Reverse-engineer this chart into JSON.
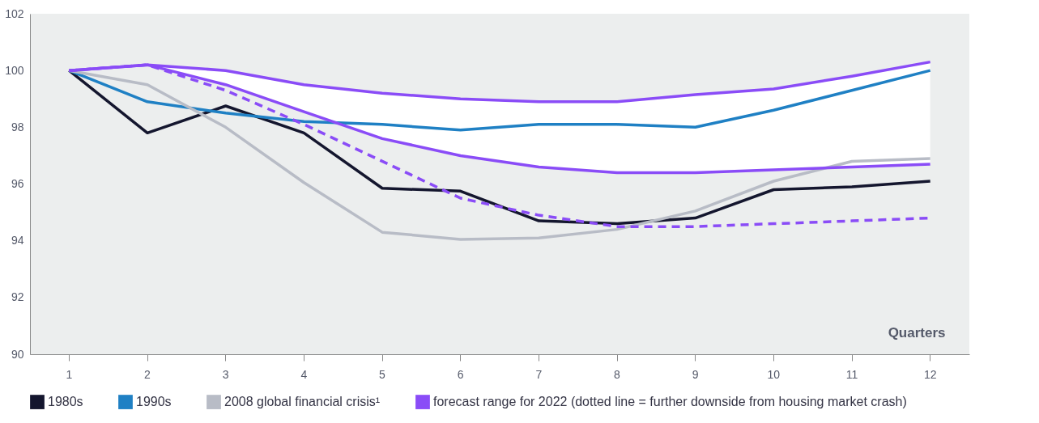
{
  "chart_data": {
    "type": "line",
    "xlabel": "Quarters",
    "categories": [
      "1",
      "2",
      "3",
      "4",
      "5",
      "6",
      "7",
      "8",
      "9",
      "10",
      "11",
      "12"
    ],
    "series": [
      {
        "name": "1980s",
        "color": "#14162e",
        "values": [
          100,
          97.8,
          98.75,
          97.8,
          95.85,
          95.75,
          94.7,
          94.6,
          94.8,
          95.8,
          95.9,
          96.1
        ]
      },
      {
        "name": "1990s",
        "color": "#1f80c4",
        "values": [
          100,
          98.9,
          98.5,
          98.2,
          98.1,
          97.9,
          98.1,
          98.1,
          98.0,
          98.6,
          99.3,
          100
        ]
      },
      {
        "name": "2008 global financial crisis¹",
        "color": "#b8bcc6",
        "values": [
          100,
          99.5,
          98.0,
          96.05,
          94.3,
          94.05,
          94.1,
          94.4,
          95.05,
          96.1,
          96.8,
          96.9
        ]
      },
      {
        "name": "forecast range for 2022 (dotted line = further downside from housing market crash)",
        "color": "#8a4cf7",
        "values": [
          100,
          100.2,
          100.0,
          99.5,
          99.2,
          99.0,
          98.9,
          98.9,
          99.15,
          99.35,
          99.8,
          100.3
        ],
        "lower": [
          100,
          100.2,
          99.5,
          98.55,
          97.6,
          97.0,
          96.6,
          96.4,
          96.4,
          96.5,
          96.6,
          96.7
        ],
        "upper": [
          100,
          100.2,
          100.0,
          99.5,
          99.2,
          99.0,
          98.9,
          98.9,
          99.15,
          99.35,
          99.8,
          100.3
        ]
      },
      {
        "color": "#8a4cf7",
        "values": [
          100,
          100.2,
          99.5,
          98.55,
          97.6,
          97.0,
          96.6,
          96.4,
          96.4,
          96.5,
          96.6,
          96.7
        ]
      },
      {
        "color": "#8a4cf7",
        "line_style": "dashed",
        "values": [
          100,
          100.2,
          99.3,
          98.1,
          96.8,
          95.5,
          94.9,
          94.5,
          94.5,
          94.6,
          94.7,
          94.8
        ]
      }
    ],
    "ylim": [
      90,
      102
    ],
    "yticks": [
      90,
      92,
      94,
      96,
      98,
      100,
      102
    ],
    "grid": false,
    "legend": "bottom"
  }
}
